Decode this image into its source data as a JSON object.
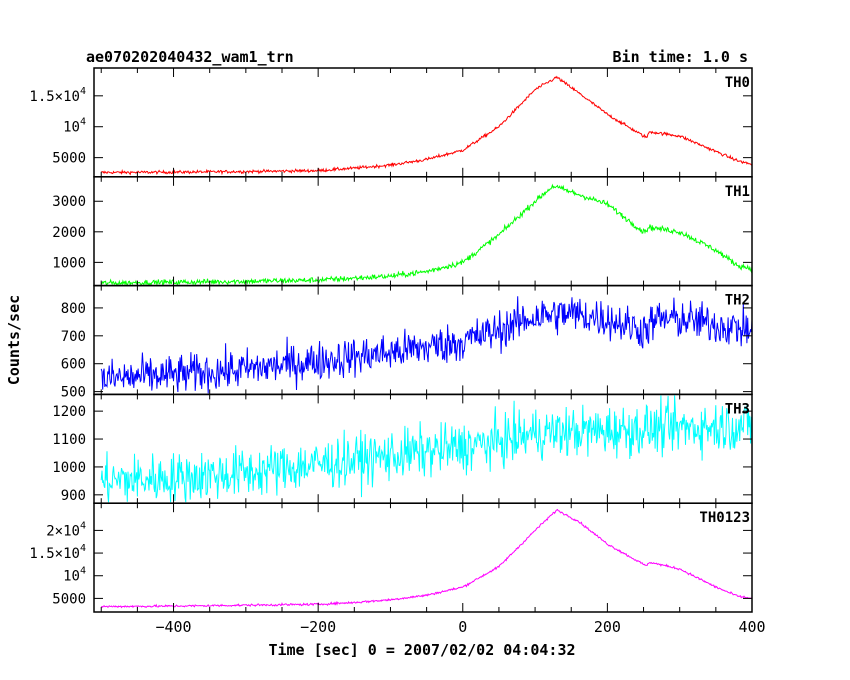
{
  "title_left": "ae070202040432_wam1_trn",
  "title_right": "Bin time: 1.0 s",
  "ylabel": "Counts/sec",
  "xlabel": "Time [sec] 0 = 2007/02/02 04:04:32",
  "chart_data": {
    "type": "line",
    "x_range": [
      -510,
      400
    ],
    "x_ticks": [
      -400,
      -200,
      0,
      200,
      400
    ],
    "x_tick_labels": [
      "−400",
      "−200",
      "0",
      "200",
      "400"
    ],
    "panels": [
      {
        "name": "TH0",
        "color": "#ff0000",
        "ylim": [
          1900,
          19500
        ],
        "noise": 120,
        "ticks": [
          {
            "v": 5000,
            "base": "5000",
            "exp": ""
          },
          {
            "v": 10000,
            "base": "10",
            "exp": "4"
          },
          {
            "v": 15000,
            "base": "1.5×10",
            "exp": "4"
          }
        ],
        "profile": [
          [
            -500,
            2600
          ],
          [
            -400,
            2650
          ],
          [
            -300,
            2750
          ],
          [
            -200,
            2900
          ],
          [
            -150,
            3300
          ],
          [
            -100,
            3800
          ],
          [
            -50,
            4700
          ],
          [
            0,
            6200
          ],
          [
            50,
            10000
          ],
          [
            100,
            16000
          ],
          [
            130,
            18000
          ],
          [
            160,
            15500
          ],
          [
            200,
            12000
          ],
          [
            250,
            8500
          ],
          [
            255,
            8300
          ],
          [
            258,
            9200
          ],
          [
            300,
            8500
          ],
          [
            350,
            6000
          ],
          [
            380,
            4500
          ],
          [
            400,
            3900
          ]
        ]
      },
      {
        "name": "TH1",
        "color": "#00ff00",
        "ylim": [
          240,
          3800
        ],
        "noise": 45,
        "ticks": [
          {
            "v": 1000,
            "base": "1000",
            "exp": ""
          },
          {
            "v": 2000,
            "base": "2000",
            "exp": ""
          },
          {
            "v": 3000,
            "base": "3000",
            "exp": ""
          }
        ],
        "profile": [
          [
            -500,
            320
          ],
          [
            -400,
            350
          ],
          [
            -300,
            380
          ],
          [
            -200,
            420
          ],
          [
            -100,
            550
          ],
          [
            -50,
            700
          ],
          [
            0,
            1000
          ],
          [
            50,
            1900
          ],
          [
            100,
            3000
          ],
          [
            125,
            3500
          ],
          [
            150,
            3300
          ],
          [
            200,
            2900
          ],
          [
            250,
            2000
          ],
          [
            258,
            2150
          ],
          [
            300,
            2000
          ],
          [
            350,
            1400
          ],
          [
            380,
            900
          ],
          [
            400,
            800
          ]
        ]
      },
      {
        "name": "TH2",
        "color": "#0000ff",
        "ylim": [
          490,
          880
        ],
        "noise": 35,
        "ticks": [
          {
            "v": 500,
            "base": "500",
            "exp": ""
          },
          {
            "v": 600,
            "base": "600",
            "exp": ""
          },
          {
            "v": 700,
            "base": "700",
            "exp": ""
          },
          {
            "v": 800,
            "base": "800",
            "exp": ""
          }
        ],
        "profile": [
          [
            -500,
            545
          ],
          [
            -400,
            560
          ],
          [
            -300,
            580
          ],
          [
            -200,
            610
          ],
          [
            -100,
            640
          ],
          [
            0,
            680
          ],
          [
            50,
            720
          ],
          [
            100,
            770
          ],
          [
            150,
            780
          ],
          [
            200,
            760
          ],
          [
            250,
            720
          ],
          [
            270,
            760
          ],
          [
            300,
            760
          ],
          [
            350,
            740
          ],
          [
            400,
            720
          ]
        ]
      },
      {
        "name": "TH3",
        "color": "#00ffff",
        "ylim": [
          870,
          1260
        ],
        "noise": 45,
        "ticks": [
          {
            "v": 900,
            "base": "900",
            "exp": ""
          },
          {
            "v": 1000,
            "base": "1000",
            "exp": ""
          },
          {
            "v": 1100,
            "base": "1100",
            "exp": ""
          },
          {
            "v": 1200,
            "base": "1200",
            "exp": ""
          }
        ],
        "profile": [
          [
            -500,
            950
          ],
          [
            -400,
            960
          ],
          [
            -300,
            980
          ],
          [
            -200,
            1010
          ],
          [
            -100,
            1040
          ],
          [
            0,
            1070
          ],
          [
            50,
            1090
          ],
          [
            100,
            1120
          ],
          [
            200,
            1130
          ],
          [
            300,
            1140
          ],
          [
            400,
            1150
          ]
        ]
      },
      {
        "name": "TH0123",
        "color": "#ff00ff",
        "ylim": [
          2000,
          26000
        ],
        "noise": 120,
        "ticks": [
          {
            "v": 5000,
            "base": "5000",
            "exp": ""
          },
          {
            "v": 10000,
            "base": "10",
            "exp": "4"
          },
          {
            "v": 15000,
            "base": "1.5×10",
            "exp": "4"
          },
          {
            "v": 20000,
            "base": "2×10",
            "exp": "4"
          }
        ],
        "profile": [
          [
            -500,
            3200
          ],
          [
            -400,
            3300
          ],
          [
            -300,
            3500
          ],
          [
            -200,
            3700
          ],
          [
            -150,
            4100
          ],
          [
            -100,
            4700
          ],
          [
            -50,
            5700
          ],
          [
            0,
            7500
          ],
          [
            50,
            12000
          ],
          [
            100,
            20000
          ],
          [
            130,
            24500
          ],
          [
            160,
            22000
          ],
          [
            200,
            17000
          ],
          [
            250,
            12500
          ],
          [
            255,
            12200
          ],
          [
            258,
            13000
          ],
          [
            300,
            11500
          ],
          [
            350,
            7500
          ],
          [
            380,
            5500
          ],
          [
            400,
            5000
          ]
        ]
      }
    ]
  }
}
